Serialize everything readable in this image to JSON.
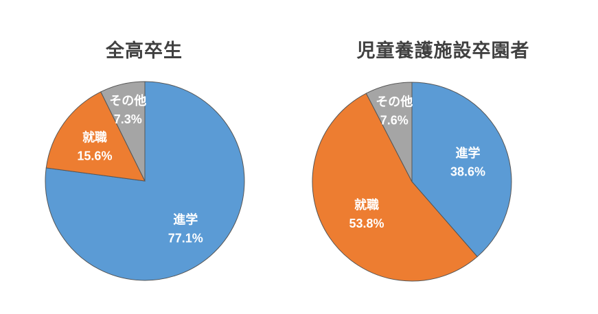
{
  "chart_data": [
    {
      "type": "pie",
      "title": "全高卒生",
      "slices": [
        {
          "label": "進学",
          "value": 77.1,
          "value_label": "77.1%",
          "color": "#5b9bd5"
        },
        {
          "label": "就職",
          "value": 15.6,
          "value_label": "15.6%",
          "color": "#ed7d31"
        },
        {
          "label": "その他",
          "value": 7.3,
          "value_label": "7.3%",
          "color": "#a5a5a5"
        }
      ],
      "start": "12 o'clock",
      "direction": "clockwise"
    },
    {
      "type": "pie",
      "title": "児童養護施設卒園者",
      "slices": [
        {
          "label": "進学",
          "value": 38.6,
          "value_label": "38.6%",
          "color": "#5b9bd5"
        },
        {
          "label": "就職",
          "value": 53.8,
          "value_label": "53.8%",
          "color": "#ed7d31"
        },
        {
          "label": "その他",
          "value": 7.6,
          "value_label": "7.6%",
          "color": "#a5a5a5"
        }
      ],
      "start": "12 o'clock",
      "direction": "clockwise"
    }
  ]
}
